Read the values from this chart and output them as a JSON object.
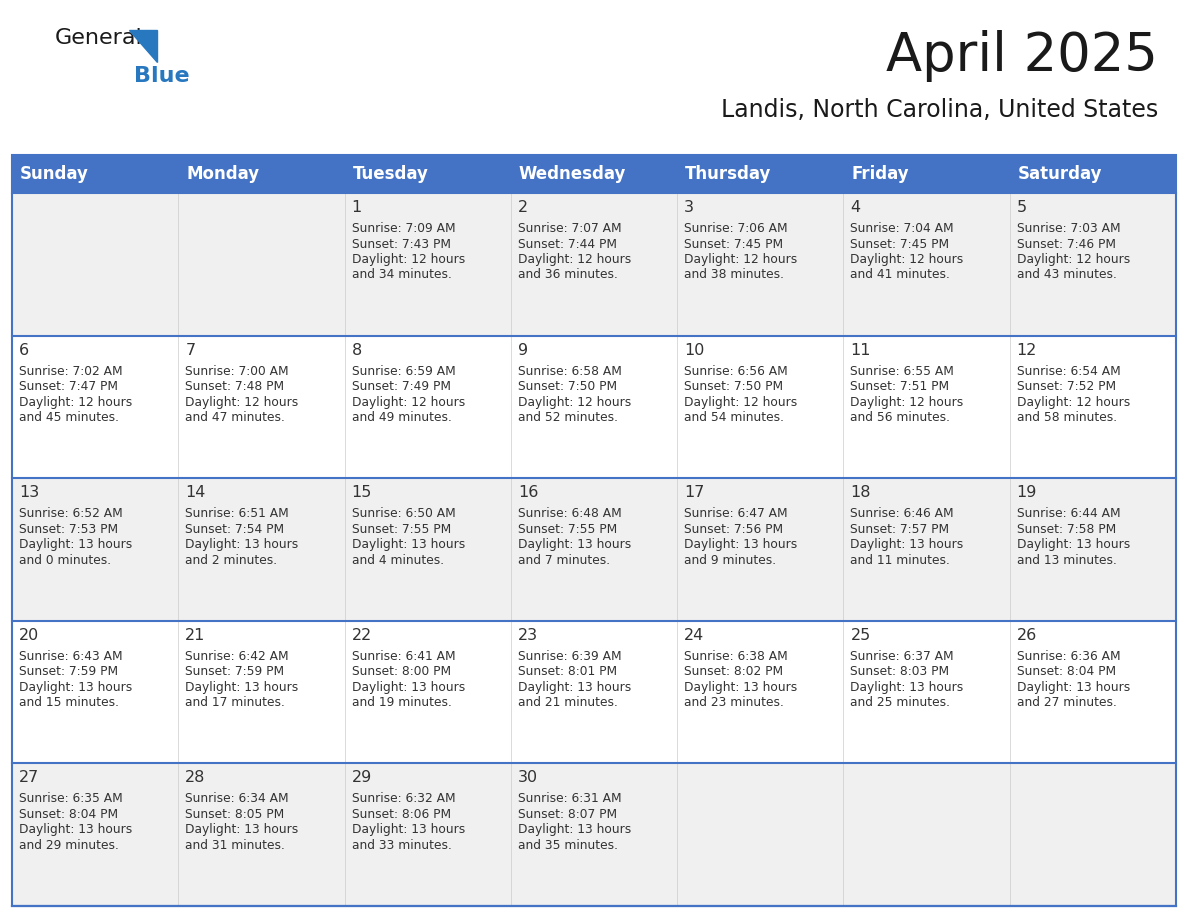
{
  "title": "April 2025",
  "subtitle": "Landis, North Carolina, United States",
  "header_bg_color": "#4472C4",
  "header_text_color": "#FFFFFF",
  "day_names": [
    "Sunday",
    "Monday",
    "Tuesday",
    "Wednesday",
    "Thursday",
    "Friday",
    "Saturday"
  ],
  "title_color": "#1a1a1a",
  "subtitle_color": "#1a1a1a",
  "cell_bg_row0": "#f0f0f0",
  "cell_bg_row1": "#ffffff",
  "cell_bg_row2": "#f0f0f0",
  "cell_bg_row3": "#ffffff",
  "cell_bg_row4": "#f0f0f0",
  "cell_line_color": "#4472C4",
  "cell_text_color": "#333333",
  "logo_general_color": "#1a1a1a",
  "logo_blue_color": "#2878c0",
  "logo_triangle_color": "#2878c0",
  "rows": [
    [
      {
        "day": "",
        "lines": []
      },
      {
        "day": "",
        "lines": []
      },
      {
        "day": "1",
        "lines": [
          "Sunrise: 7:09 AM",
          "Sunset: 7:43 PM",
          "Daylight: 12 hours",
          "and 34 minutes."
        ]
      },
      {
        "day": "2",
        "lines": [
          "Sunrise: 7:07 AM",
          "Sunset: 7:44 PM",
          "Daylight: 12 hours",
          "and 36 minutes."
        ]
      },
      {
        "day": "3",
        "lines": [
          "Sunrise: 7:06 AM",
          "Sunset: 7:45 PM",
          "Daylight: 12 hours",
          "and 38 minutes."
        ]
      },
      {
        "day": "4",
        "lines": [
          "Sunrise: 7:04 AM",
          "Sunset: 7:45 PM",
          "Daylight: 12 hours",
          "and 41 minutes."
        ]
      },
      {
        "day": "5",
        "lines": [
          "Sunrise: 7:03 AM",
          "Sunset: 7:46 PM",
          "Daylight: 12 hours",
          "and 43 minutes."
        ]
      }
    ],
    [
      {
        "day": "6",
        "lines": [
          "Sunrise: 7:02 AM",
          "Sunset: 7:47 PM",
          "Daylight: 12 hours",
          "and 45 minutes."
        ]
      },
      {
        "day": "7",
        "lines": [
          "Sunrise: 7:00 AM",
          "Sunset: 7:48 PM",
          "Daylight: 12 hours",
          "and 47 minutes."
        ]
      },
      {
        "day": "8",
        "lines": [
          "Sunrise: 6:59 AM",
          "Sunset: 7:49 PM",
          "Daylight: 12 hours",
          "and 49 minutes."
        ]
      },
      {
        "day": "9",
        "lines": [
          "Sunrise: 6:58 AM",
          "Sunset: 7:50 PM",
          "Daylight: 12 hours",
          "and 52 minutes."
        ]
      },
      {
        "day": "10",
        "lines": [
          "Sunrise: 6:56 AM",
          "Sunset: 7:50 PM",
          "Daylight: 12 hours",
          "and 54 minutes."
        ]
      },
      {
        "day": "11",
        "lines": [
          "Sunrise: 6:55 AM",
          "Sunset: 7:51 PM",
          "Daylight: 12 hours",
          "and 56 minutes."
        ]
      },
      {
        "day": "12",
        "lines": [
          "Sunrise: 6:54 AM",
          "Sunset: 7:52 PM",
          "Daylight: 12 hours",
          "and 58 minutes."
        ]
      }
    ],
    [
      {
        "day": "13",
        "lines": [
          "Sunrise: 6:52 AM",
          "Sunset: 7:53 PM",
          "Daylight: 13 hours",
          "and 0 minutes."
        ]
      },
      {
        "day": "14",
        "lines": [
          "Sunrise: 6:51 AM",
          "Sunset: 7:54 PM",
          "Daylight: 13 hours",
          "and 2 minutes."
        ]
      },
      {
        "day": "15",
        "lines": [
          "Sunrise: 6:50 AM",
          "Sunset: 7:55 PM",
          "Daylight: 13 hours",
          "and 4 minutes."
        ]
      },
      {
        "day": "16",
        "lines": [
          "Sunrise: 6:48 AM",
          "Sunset: 7:55 PM",
          "Daylight: 13 hours",
          "and 7 minutes."
        ]
      },
      {
        "day": "17",
        "lines": [
          "Sunrise: 6:47 AM",
          "Sunset: 7:56 PM",
          "Daylight: 13 hours",
          "and 9 minutes."
        ]
      },
      {
        "day": "18",
        "lines": [
          "Sunrise: 6:46 AM",
          "Sunset: 7:57 PM",
          "Daylight: 13 hours",
          "and 11 minutes."
        ]
      },
      {
        "day": "19",
        "lines": [
          "Sunrise: 6:44 AM",
          "Sunset: 7:58 PM",
          "Daylight: 13 hours",
          "and 13 minutes."
        ]
      }
    ],
    [
      {
        "day": "20",
        "lines": [
          "Sunrise: 6:43 AM",
          "Sunset: 7:59 PM",
          "Daylight: 13 hours",
          "and 15 minutes."
        ]
      },
      {
        "day": "21",
        "lines": [
          "Sunrise: 6:42 AM",
          "Sunset: 7:59 PM",
          "Daylight: 13 hours",
          "and 17 minutes."
        ]
      },
      {
        "day": "22",
        "lines": [
          "Sunrise: 6:41 AM",
          "Sunset: 8:00 PM",
          "Daylight: 13 hours",
          "and 19 minutes."
        ]
      },
      {
        "day": "23",
        "lines": [
          "Sunrise: 6:39 AM",
          "Sunset: 8:01 PM",
          "Daylight: 13 hours",
          "and 21 minutes."
        ]
      },
      {
        "day": "24",
        "lines": [
          "Sunrise: 6:38 AM",
          "Sunset: 8:02 PM",
          "Daylight: 13 hours",
          "and 23 minutes."
        ]
      },
      {
        "day": "25",
        "lines": [
          "Sunrise: 6:37 AM",
          "Sunset: 8:03 PM",
          "Daylight: 13 hours",
          "and 25 minutes."
        ]
      },
      {
        "day": "26",
        "lines": [
          "Sunrise: 6:36 AM",
          "Sunset: 8:04 PM",
          "Daylight: 13 hours",
          "and 27 minutes."
        ]
      }
    ],
    [
      {
        "day": "27",
        "lines": [
          "Sunrise: 6:35 AM",
          "Sunset: 8:04 PM",
          "Daylight: 13 hours",
          "and 29 minutes."
        ]
      },
      {
        "day": "28",
        "lines": [
          "Sunrise: 6:34 AM",
          "Sunset: 8:05 PM",
          "Daylight: 13 hours",
          "and 31 minutes."
        ]
      },
      {
        "day": "29",
        "lines": [
          "Sunrise: 6:32 AM",
          "Sunset: 8:06 PM",
          "Daylight: 13 hours",
          "and 33 minutes."
        ]
      },
      {
        "day": "30",
        "lines": [
          "Sunrise: 6:31 AM",
          "Sunset: 8:07 PM",
          "Daylight: 13 hours",
          "and 35 minutes."
        ]
      },
      {
        "day": "",
        "lines": []
      },
      {
        "day": "",
        "lines": []
      },
      {
        "day": "",
        "lines": []
      }
    ]
  ],
  "row_bg_colors": [
    "#f0f0f0",
    "#ffffff",
    "#f0f0f0",
    "#ffffff",
    "#f0f0f0"
  ]
}
